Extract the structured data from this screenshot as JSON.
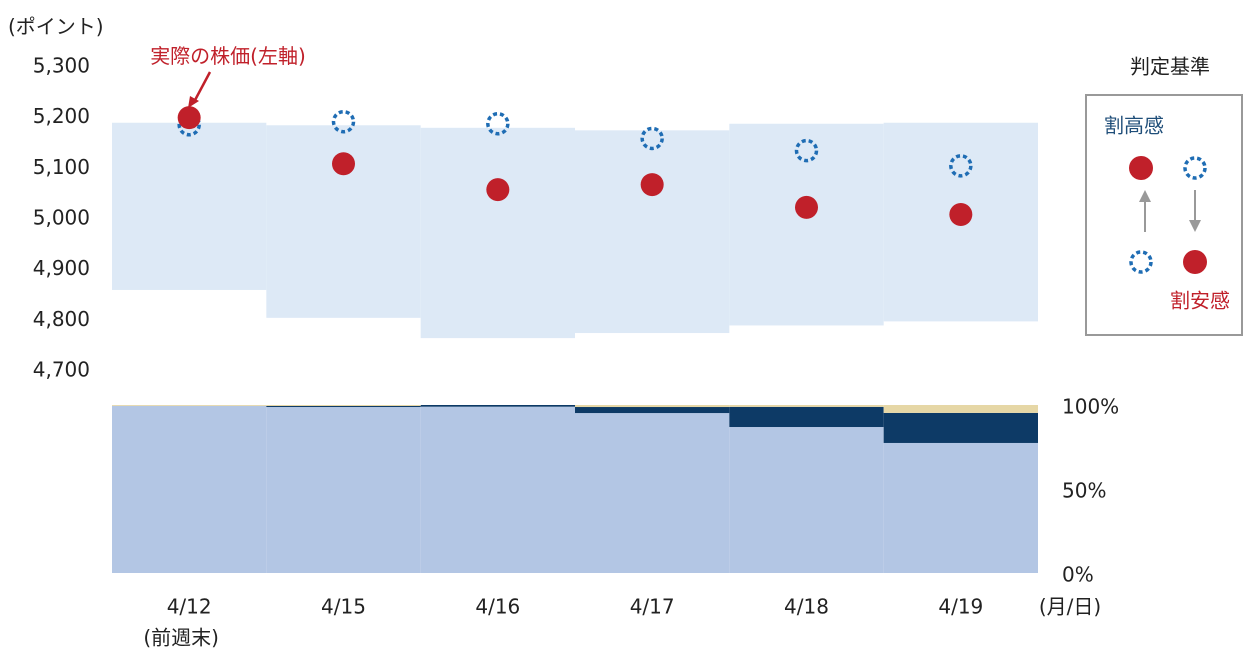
{
  "chart_data": [
    {
      "type": "band-scatter",
      "y_label": "(ポイント)",
      "x_label": "(月/日)",
      "categories": [
        "4/12",
        "4/15",
        "4/16",
        "4/17",
        "4/18",
        "4/19"
      ],
      "category_note": "(前週末)",
      "ylim": [
        4633,
        5300
      ],
      "yticks": [
        {
          "value": 4700,
          "label": "4,700"
        },
        {
          "value": 4800,
          "label": "4,800"
        },
        {
          "value": 4900,
          "label": "4,900"
        },
        {
          "value": 5000,
          "label": "5,000"
        },
        {
          "value": 5100,
          "label": "5,100"
        },
        {
          "value": 5200,
          "label": "5,200"
        },
        {
          "value": 5300,
          "label": "5,300"
        }
      ],
      "band": {
        "color": "#dde9f6",
        "high": [
          5190,
          5185,
          5180,
          5175,
          5188,
          5190
        ],
        "low": [
          4860,
          4805,
          4765,
          4775,
          4790,
          4798
        ]
      },
      "series": [
        {
          "name": "実際の株価(左軸)",
          "color": "#c0202a",
          "marker": "solid",
          "values": [
            5200,
            5109,
            5058,
            5068,
            5023,
            5009
          ]
        },
        {
          "color": "#1f6db4",
          "marker": "dotted",
          "values": [
            5186,
            5192,
            5188,
            5159,
            5135,
            5105
          ]
        }
      ],
      "legend": {
        "title": "判定基準",
        "high": "割高感",
        "low": "割安感"
      }
    },
    {
      "type": "stacked-step",
      "y2lim": [
        0,
        100
      ],
      "y2ticks": [
        {
          "value": 0,
          "label": "0%"
        },
        {
          "value": 50,
          "label": "50%"
        },
        {
          "value": 100,
          "label": "100%"
        }
      ],
      "series": [
        {
          "color": "#b3c6e4",
          "values": [
            99.5,
            98.8,
            99,
            95.2,
            86.9,
            77.4
          ]
        },
        {
          "color": "#0d3a66",
          "values": [
            0,
            0.6,
            1,
            3.6,
            12,
            17.9
          ]
        },
        {
          "color": "#e6d7a6",
          "values": [
            0.5,
            0.6,
            0,
            1.2,
            1.1,
            4.7
          ]
        }
      ]
    }
  ]
}
